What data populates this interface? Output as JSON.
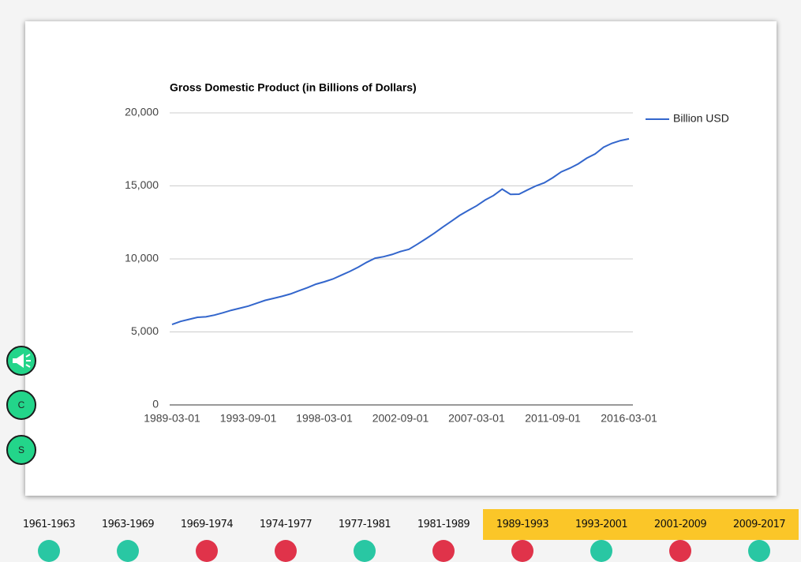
{
  "chart_data": {
    "type": "line",
    "title": "Gross Domestic Product (in Billions of Dollars)",
    "x": [
      "1989-03-01",
      "1989-09-01",
      "1990-03-01",
      "1990-09-01",
      "1991-03-01",
      "1991-09-01",
      "1992-03-01",
      "1992-09-01",
      "1993-03-01",
      "1993-09-01",
      "1994-03-01",
      "1994-09-01",
      "1995-03-01",
      "1995-09-01",
      "1996-03-01",
      "1996-09-01",
      "1997-03-01",
      "1997-09-01",
      "1998-03-01",
      "1998-09-01",
      "1999-03-01",
      "1999-09-01",
      "2000-03-01",
      "2000-09-01",
      "2001-03-01",
      "2001-09-01",
      "2002-03-01",
      "2002-09-01",
      "2003-03-01",
      "2003-09-01",
      "2004-03-01",
      "2004-09-01",
      "2005-03-01",
      "2005-09-01",
      "2006-03-01",
      "2006-09-01",
      "2007-03-01",
      "2007-09-01",
      "2008-03-01",
      "2008-09-01",
      "2009-03-01",
      "2009-09-01",
      "2010-03-01",
      "2010-09-01",
      "2011-03-01",
      "2011-09-01",
      "2012-03-01",
      "2012-09-01",
      "2013-03-01",
      "2013-09-01",
      "2014-03-01",
      "2014-09-01",
      "2015-03-01",
      "2015-09-01",
      "2016-03-01"
    ],
    "series": [
      {
        "name": "Billion USD",
        "color": "#3366cc",
        "values": [
          5510,
          5720,
          5860,
          6000,
          6030,
          6150,
          6310,
          6480,
          6620,
          6770,
          6960,
          7160,
          7300,
          7440,
          7600,
          7820,
          8030,
          8270,
          8430,
          8620,
          8880,
          9140,
          9430,
          9770,
          10050,
          10150,
          10300,
          10510,
          10660,
          11010,
          11380,
          11770,
          12180,
          12580,
          12980,
          13320,
          13640,
          14030,
          14340,
          14780,
          14420,
          14430,
          14720,
          15000,
          15210,
          15560,
          15960,
          16210,
          16510,
          16900,
          17190,
          17650,
          17920,
          18100,
          18220
        ]
      }
    ],
    "xlim": [
      "1989-03-01",
      "2016-03-01"
    ],
    "xticks": [
      "1989-03-01",
      "1993-09-01",
      "1998-03-01",
      "2002-09-01",
      "2007-03-01",
      "2011-09-01",
      "2016-03-01"
    ],
    "ylim": [
      0,
      20000
    ],
    "yticks": [
      0,
      {
        "value": 5000,
        "label": "5,000"
      },
      {
        "value": 10000,
        "label": "10,000"
      },
      {
        "value": 15000,
        "label": "15,000"
      },
      {
        "value": 20000,
        "label": "20,000"
      }
    ],
    "grid": true,
    "legend": "right"
  },
  "side_buttons": [
    "C",
    "S"
  ],
  "tabs": [
    {
      "label": "1961-1963",
      "active": false
    },
    {
      "label": "1963-1969",
      "active": false
    },
    {
      "label": "1969-1974",
      "active": false
    },
    {
      "label": "1974-1977",
      "active": false
    },
    {
      "label": "1977-1981",
      "active": false
    },
    {
      "label": "1981-1989",
      "active": false
    },
    {
      "label": "1989-1993",
      "active": true
    },
    {
      "label": "1993-2001",
      "active": true
    },
    {
      "label": "2001-2009",
      "active": true
    },
    {
      "label": "2009-2017",
      "active": true
    }
  ]
}
